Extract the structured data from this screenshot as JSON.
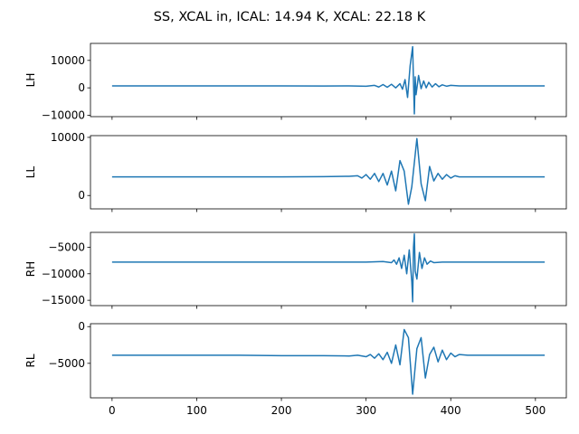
{
  "figure": {
    "title": "SS, XCAL in, ICAL: 14.94 K, XCAL: 22.18 K"
  },
  "colors": {
    "line": "#1f77b4",
    "axes": "#000000",
    "background": "#ffffff"
  },
  "chart_data": {
    "type": "line",
    "title": "SS, XCAL in, ICAL: 14.94 K, XCAL: 22.18 K",
    "shared_x": true,
    "x_ticks": [
      0,
      100,
      200,
      300,
      400,
      500
    ],
    "xlim": [
      -25.5,
      536.5
    ],
    "grid": false,
    "legend": "none",
    "subplots": [
      {
        "ylabel": "LH",
        "ylim": [
          -10500,
          16200
        ],
        "y_ticks": [
          -10000,
          0,
          10000
        ],
        "y_tick_labels": [
          "−10000",
          "0",
          "10000"
        ],
        "series": [
          {
            "x": [
              0,
              50,
              100,
              150,
              200,
              250,
              280,
              300,
              310,
              315,
              320,
              325,
              330,
              335,
              340,
              343,
              346,
              349,
              352,
              355,
              356,
              357,
              358,
              359,
              362,
              365,
              368,
              371,
              374,
              378,
              382,
              386,
              390,
              395,
              400,
              410,
              420,
              440,
              480,
              511
            ],
            "y": [
              700,
              700,
              700,
              700,
              700,
              650,
              700,
              600,
              900,
              300,
              1200,
              200,
              1300,
              0,
              1500,
              -500,
              3000,
              -3500,
              8000,
              15000,
              2000,
              -9500,
              4000,
              -2500,
              4500,
              -300,
              2500,
              0,
              2000,
              300,
              1500,
              400,
              1100,
              600,
              900,
              700,
              700,
              700,
              700,
              700
            ]
          }
        ]
      },
      {
        "ylabel": "LL",
        "ylim": [
          -2300,
          10300
        ],
        "y_ticks": [
          0,
          10000
        ],
        "y_tick_labels": [
          "0",
          "10000"
        ],
        "series": [
          {
            "x": [
              0,
              50,
              100,
              150,
              200,
              250,
              280,
              290,
              295,
              300,
              305,
              310,
              315,
              320,
              325,
              330,
              335,
              340,
              345,
              350,
              354,
              360,
              365,
              370,
              375,
              380,
              385,
              390,
              395,
              400,
              405,
              410,
              420,
              440,
              460,
              511
            ],
            "y": [
              3200,
              3200,
              3200,
              3200,
              3200,
              3250,
              3300,
              3400,
              3000,
              3600,
              2800,
              3800,
              2400,
              3800,
              1800,
              4200,
              800,
              6000,
              4200,
              -1500,
              1500,
              9800,
              2000,
              -900,
              5000,
              2500,
              3800,
              2800,
              3600,
              3000,
              3400,
              3200,
              3200,
              3200,
              3200,
              3200
            ]
          }
        ]
      },
      {
        "ylabel": "RH",
        "ylim": [
          -16000,
          -2200
        ],
        "y_ticks": [
          -15000,
          -10000,
          -5000
        ],
        "y_tick_labels": [
          "−15000",
          "−10000",
          "−5000"
        ],
        "series": [
          {
            "x": [
              0,
              50,
              100,
              150,
              200,
              250,
              300,
              320,
              330,
              333,
              336,
              339,
              342,
              345,
              348,
              351,
              354,
              355,
              356,
              357,
              358,
              360,
              363,
              366,
              369,
              372,
              376,
              380,
              390,
              400,
              450,
              511
            ],
            "y": [
              -7800,
              -7800,
              -7800,
              -7800,
              -7800,
              -7800,
              -7800,
              -7700,
              -7900,
              -7400,
              -8200,
              -7000,
              -9000,
              -6500,
              -10000,
              -5500,
              -11500,
              -15300,
              -5000,
              -2500,
              -9500,
              -11000,
              -6000,
              -9000,
              -7000,
              -8200,
              -7600,
              -7900,
              -7800,
              -7800,
              -7800,
              -7800
            ]
          }
        ]
      },
      {
        "ylabel": "RL",
        "ylim": [
          -9700,
          400
        ],
        "y_ticks": [
          -5000,
          0
        ],
        "y_tick_labels": [
          "−5000",
          "0"
        ],
        "series": [
          {
            "x": [
              0,
              50,
              100,
              150,
              200,
              250,
              280,
              290,
              300,
              305,
              310,
              315,
              320,
              325,
              330,
              335,
              340,
              345,
              350,
              355,
              360,
              365,
              370,
              375,
              380,
              385,
              390,
              395,
              400,
              405,
              410,
              420,
              440,
              460,
              511
            ],
            "y": [
              -3900,
              -3900,
              -3900,
              -3900,
              -3950,
              -3950,
              -4000,
              -3900,
              -4100,
              -3800,
              -4300,
              -3700,
              -4500,
              -3500,
              -5000,
              -2500,
              -5200,
              -400,
              -1500,
              -9200,
              -3000,
              -1500,
              -7000,
              -3800,
              -2800,
              -4800,
              -3200,
              -4500,
              -3600,
              -4100,
              -3800,
              -3900,
              -3900,
              -3900,
              -3900
            ]
          }
        ]
      }
    ]
  }
}
